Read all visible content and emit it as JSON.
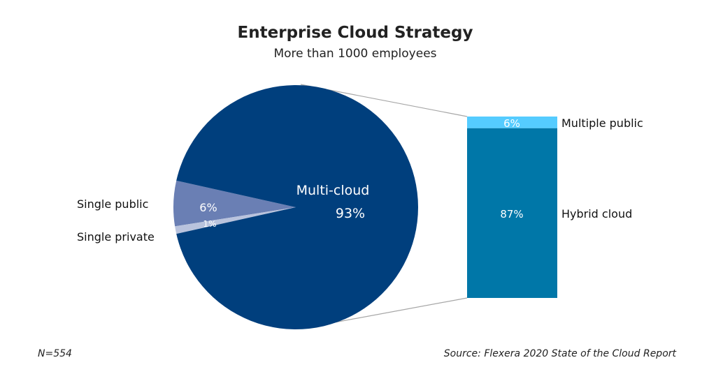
{
  "chart_data": {
    "type": "pie",
    "title": "Enterprise Cloud Strategy",
    "subtitle": "More than 1000 employees",
    "slices": [
      {
        "label": "Multi-cloud",
        "value": 93,
        "value_label": "93%",
        "color": "#003f7d"
      },
      {
        "label": "Single public",
        "value": 6,
        "value_label": "6%",
        "color": "#6a7fb4"
      },
      {
        "label": "Single private",
        "value": 1,
        "value_label": "1%",
        "color": "#b9c3dd"
      }
    ],
    "breakdown": {
      "of": "Multi-cloud",
      "type": "stacked-bar",
      "segments": [
        {
          "label": "Multiple public",
          "value": 6,
          "value_label": "6%",
          "color": "#55ccff"
        },
        {
          "label": "Hybrid cloud",
          "value": 87,
          "value_label": "87%",
          "color": "#0077a8"
        }
      ]
    },
    "connector_color": "#a6a6a6",
    "footnote": "N=554",
    "source": "Source: Flexera 2020 State of the Cloud Report"
  }
}
